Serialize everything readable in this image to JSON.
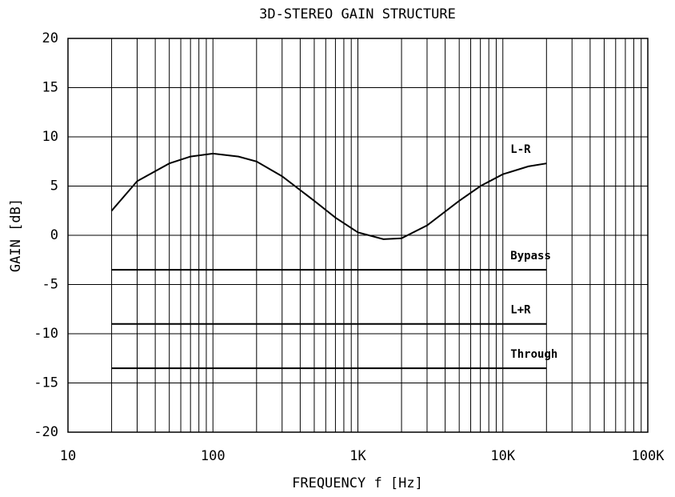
{
  "chart_data": {
    "type": "line",
    "title": "3D-STEREO GAIN STRUCTURE",
    "x_label": "FREQUENCY f [Hz]",
    "y_label": "GAIN [dB]",
    "xscale": "log",
    "grid": true,
    "xlim": [
      10,
      100000
    ],
    "xticks": [
      10,
      100,
      {
        "value": 1000,
        "label": "1K"
      },
      {
        "value": 10000,
        "label": "10K"
      },
      {
        "value": 100000,
        "label": "100K"
      }
    ],
    "ylim": [
      -20,
      20
    ],
    "yticks": [
      -20,
      -15,
      -10,
      -5,
      0,
      5,
      10,
      15,
      20
    ],
    "series": [
      {
        "name": "L-R",
        "color": "#000000",
        "x": [
          20,
          30,
          50,
          70,
          100,
          150,
          200,
          300,
          500,
          700,
          1000,
          1500,
          2000,
          3000,
          5000,
          7000,
          10000,
          15000,
          20000
        ],
        "values": [
          2.5,
          5.5,
          7.3,
          8.0,
          8.3,
          8.0,
          7.5,
          6.0,
          3.5,
          1.8,
          0.3,
          -0.4,
          -0.3,
          1.0,
          3.5,
          5.0,
          6.2,
          7.0,
          7.3
        ]
      },
      {
        "name": "Bypass",
        "color": "#000000",
        "x": [
          20,
          20000
        ],
        "values": [
          -3.5,
          -3.5
        ]
      },
      {
        "name": "L+R",
        "color": "#000000",
        "x": [
          20,
          20000
        ],
        "values": [
          -9,
          -9
        ]
      },
      {
        "name": "Through",
        "color": "#000000",
        "x": [
          20,
          20000
        ],
        "values": [
          -13.5,
          -13.5
        ]
      }
    ]
  }
}
